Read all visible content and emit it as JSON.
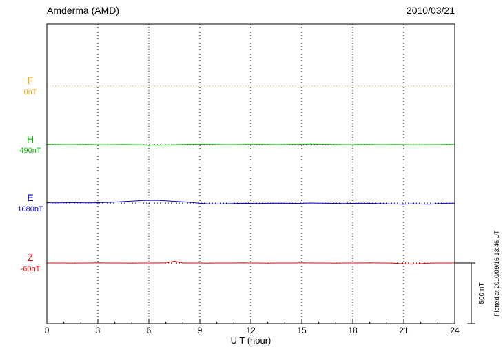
{
  "header": {
    "station": "Amderma (AMD)",
    "date": "2010/03/21"
  },
  "chart_data": {
    "type": "line",
    "title": "Amderma (AMD)",
    "subtitle": "2010/03/21",
    "xlabel": "U T (hour)",
    "ylabel": "",
    "x_range": [
      0,
      24
    ],
    "x_ticks": [
      0,
      3,
      6,
      9,
      12,
      15,
      18,
      21,
      24
    ],
    "x_step_hours": 0.5,
    "grid": "dotted",
    "scale_bar": {
      "label": "500 nT",
      "nT": 500
    },
    "plotted_note": "Plotted at 2010/09/16 13:46 UT",
    "series": [
      {
        "name": "F",
        "baseline_label": "0nT",
        "baseline": 0,
        "color": "#FFA500",
        "style": "dotted",
        "values": [
          0,
          0,
          0,
          0,
          0,
          0,
          0,
          0,
          0,
          0,
          0,
          0,
          0,
          0,
          0,
          0,
          0,
          0,
          0,
          0,
          0,
          0,
          0,
          0,
          0,
          0,
          0,
          0,
          0,
          0,
          0,
          0,
          0,
          0,
          0,
          0,
          0,
          0,
          0,
          0,
          0,
          0,
          0,
          0,
          0,
          0,
          0,
          0,
          0
        ]
      },
      {
        "name": "H",
        "baseline_label": "490nT",
        "baseline": 490,
        "color": "#00BB00",
        "style": "solid",
        "values": [
          491,
          491,
          490,
          490,
          491,
          491,
          490,
          489,
          490,
          491,
          490,
          489,
          487,
          486,
          487,
          489,
          491,
          492,
          493,
          492,
          491,
          490,
          490,
          491,
          492,
          492,
          491,
          490,
          491,
          492,
          493,
          494,
          493,
          492,
          491,
          490,
          490,
          491,
          491,
          490,
          490,
          491,
          490,
          489,
          489,
          490,
          490,
          491,
          491
        ]
      },
      {
        "name": "E",
        "baseline_label": "1080nT",
        "baseline": 1080,
        "color": "#0000CC",
        "style": "solid",
        "values": [
          1082,
          1081,
          1082,
          1083,
          1082,
          1081,
          1083,
          1085,
          1088,
          1092,
          1096,
          1100,
          1103,
          1102,
          1098,
          1094,
          1090,
          1085,
          1078,
          1074,
          1072,
          1074,
          1076,
          1078,
          1077,
          1076,
          1078,
          1079,
          1078,
          1077,
          1078,
          1080,
          1079,
          1078,
          1077,
          1076,
          1077,
          1078,
          1077,
          1076,
          1074,
          1072,
          1070,
          1074,
          1072,
          1070,
          1075,
          1078,
          1079
        ]
      },
      {
        "name": "Z",
        "baseline_label": "-60nT",
        "baseline": -60,
        "color": "#FF0000",
        "style": "solid",
        "values": [
          -60,
          -60,
          -60,
          -61,
          -60,
          -60,
          -59,
          -60,
          -60,
          -60,
          -61,
          -60,
          -60,
          -60,
          -59,
          -45,
          -60,
          -60,
          -60,
          -61,
          -60,
          -60,
          -60,
          -59,
          -60,
          -60,
          -61,
          -60,
          -60,
          -60,
          -59,
          -60,
          -60,
          -60,
          -61,
          -60,
          -60,
          -60,
          -59,
          -60,
          -60,
          -62,
          -66,
          -70,
          -65,
          -61,
          -60,
          -60,
          -60
        ]
      }
    ]
  }
}
